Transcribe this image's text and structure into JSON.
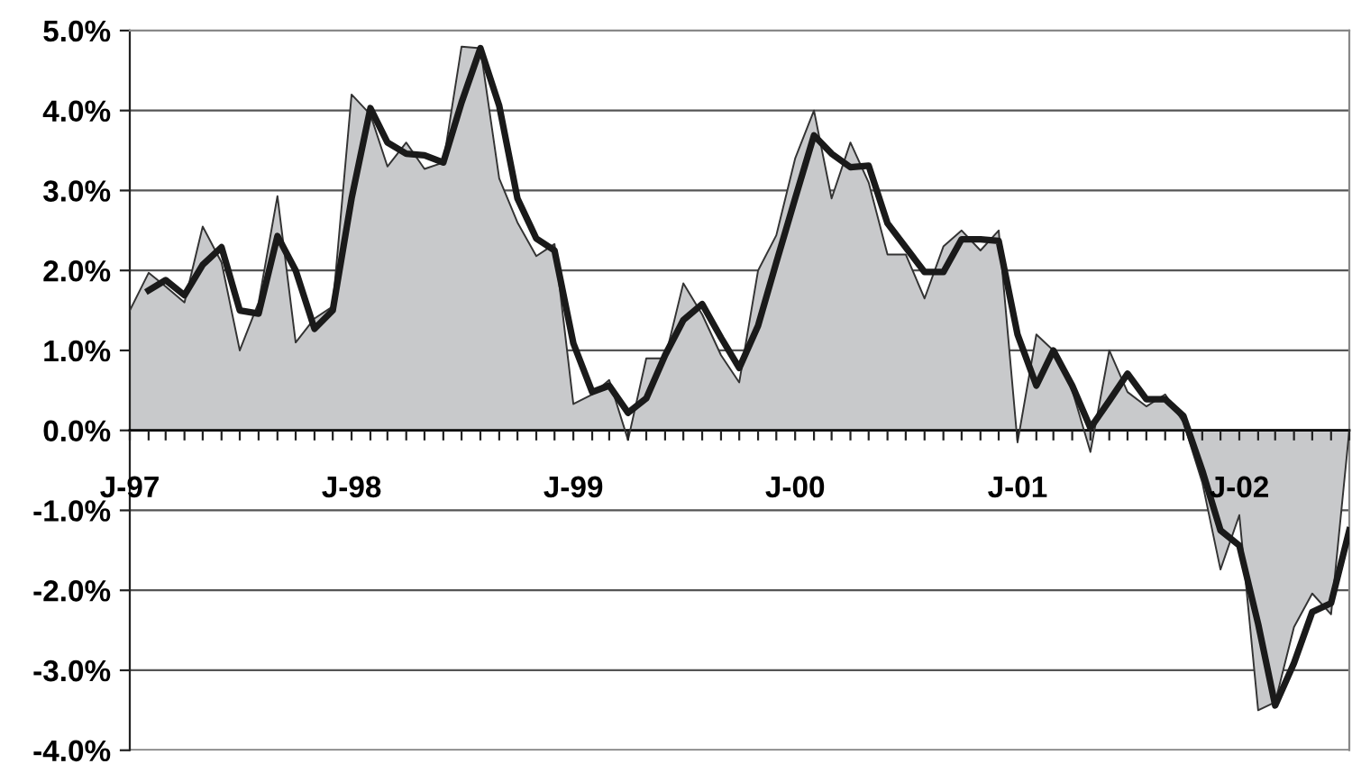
{
  "chart_data": {
    "type": "line",
    "x": [
      "1997-01",
      "1997-02",
      "1997-03",
      "1997-04",
      "1997-05",
      "1997-06",
      "1997-07",
      "1997-08",
      "1997-09",
      "1997-10",
      "1997-11",
      "1997-12",
      "1998-01",
      "1998-02",
      "1998-03",
      "1998-04",
      "1998-05",
      "1998-06",
      "1998-07",
      "1998-08",
      "1998-09",
      "1998-10",
      "1998-11",
      "1998-12",
      "1999-01",
      "1999-02",
      "1999-03",
      "1999-04",
      "1999-05",
      "1999-06",
      "1999-07",
      "1999-08",
      "1999-09",
      "1999-10",
      "1999-11",
      "1999-12",
      "2000-01",
      "2000-02",
      "2000-03",
      "2000-04",
      "2000-05",
      "2000-06",
      "2000-07",
      "2000-08",
      "2000-09",
      "2000-10",
      "2000-11",
      "2000-12",
      "2001-01",
      "2001-02",
      "2001-03",
      "2001-04",
      "2001-05",
      "2001-06",
      "2001-07",
      "2001-08",
      "2001-09",
      "2001-10",
      "2001-11",
      "2001-12",
      "2002-01",
      "2002-02",
      "2002-03",
      "2002-04",
      "2002-05",
      "2002-06",
      "2002-07"
    ],
    "series": [
      {
        "type": "area",
        "color": "#c8c9cb",
        "values": [
          1.5,
          1.97,
          1.8,
          1.6,
          2.55,
          2.1,
          1.0,
          1.6,
          2.93,
          1.1,
          1.4,
          1.55,
          4.2,
          3.95,
          3.3,
          3.6,
          3.27,
          3.35,
          4.8,
          4.78,
          3.15,
          2.6,
          2.18,
          2.33,
          0.33,
          0.45,
          0.63,
          -0.12,
          0.9,
          0.9,
          1.84,
          1.45,
          0.94,
          0.6,
          2.0,
          2.44,
          3.4,
          4.0,
          2.9,
          3.6,
          3.1,
          2.2,
          2.2,
          1.65,
          2.3,
          2.5,
          2.25,
          2.5,
          -0.15,
          1.2,
          1.0,
          0.5,
          -0.27,
          1.0,
          0.48,
          0.3,
          0.45,
          0.1,
          -0.65,
          -1.74,
          -1.06,
          -3.5,
          -3.4,
          -2.46,
          -2.04,
          -2.3,
          0.0
        ]
      },
      {
        "color": "#1a1a1a",
        "values": [
          null,
          1.75,
          1.88,
          1.69,
          2.07,
          2.29,
          1.5,
          1.46,
          2.43,
          2.0,
          1.27,
          1.5,
          2.9,
          4.03,
          3.6,
          3.46,
          3.44,
          3.35,
          4.1,
          4.78,
          4.06,
          2.9,
          2.4,
          2.25,
          1.09,
          0.48,
          0.56,
          0.22,
          0.4,
          0.94,
          1.38,
          1.58,
          1.16,
          0.78,
          1.31,
          2.1,
          2.9,
          3.69,
          3.46,
          3.29,
          3.31,
          2.59,
          2.29,
          1.98,
          1.98,
          2.39,
          2.39,
          2.37,
          1.2,
          0.56,
          1.0,
          0.56,
          0.03,
          0.37,
          0.71,
          0.39,
          0.39,
          0.18,
          -0.5,
          -1.25,
          -1.44,
          -2.42,
          -3.44,
          -2.91,
          -2.27,
          -2.16,
          -1.25
        ]
      }
    ],
    "xlim": [
      "1997-01",
      "2002-07"
    ],
    "xticks": [
      {
        "value": "1997-01",
        "label": "J-97"
      },
      {
        "value": "1998-01",
        "label": "J-98"
      },
      {
        "value": "1999-01",
        "label": "J-99"
      },
      {
        "value": "2000-01",
        "label": "J-00"
      },
      {
        "value": "2001-01",
        "label": "J-01"
      },
      {
        "value": "2002-01",
        "label": "J-02"
      }
    ],
    "ylim": [
      -4,
      5
    ],
    "yticks": [
      {
        "value": -4,
        "label": "-4.0%"
      },
      {
        "value": -3,
        "label": "-3.0%"
      },
      {
        "value": -2,
        "label": "-2.0%"
      },
      {
        "value": -1,
        "label": "-1.0%"
      },
      {
        "value": 0,
        "label": "0.0%"
      },
      {
        "value": 1,
        "label": "1.0%"
      },
      {
        "value": 2,
        "label": "2.0%"
      },
      {
        "value": 3,
        "label": "3.0%"
      },
      {
        "value": 4,
        "label": "4.0%"
      },
      {
        "value": 5,
        "label": "5.0%"
      }
    ],
    "grid": "y",
    "legend": false
  }
}
